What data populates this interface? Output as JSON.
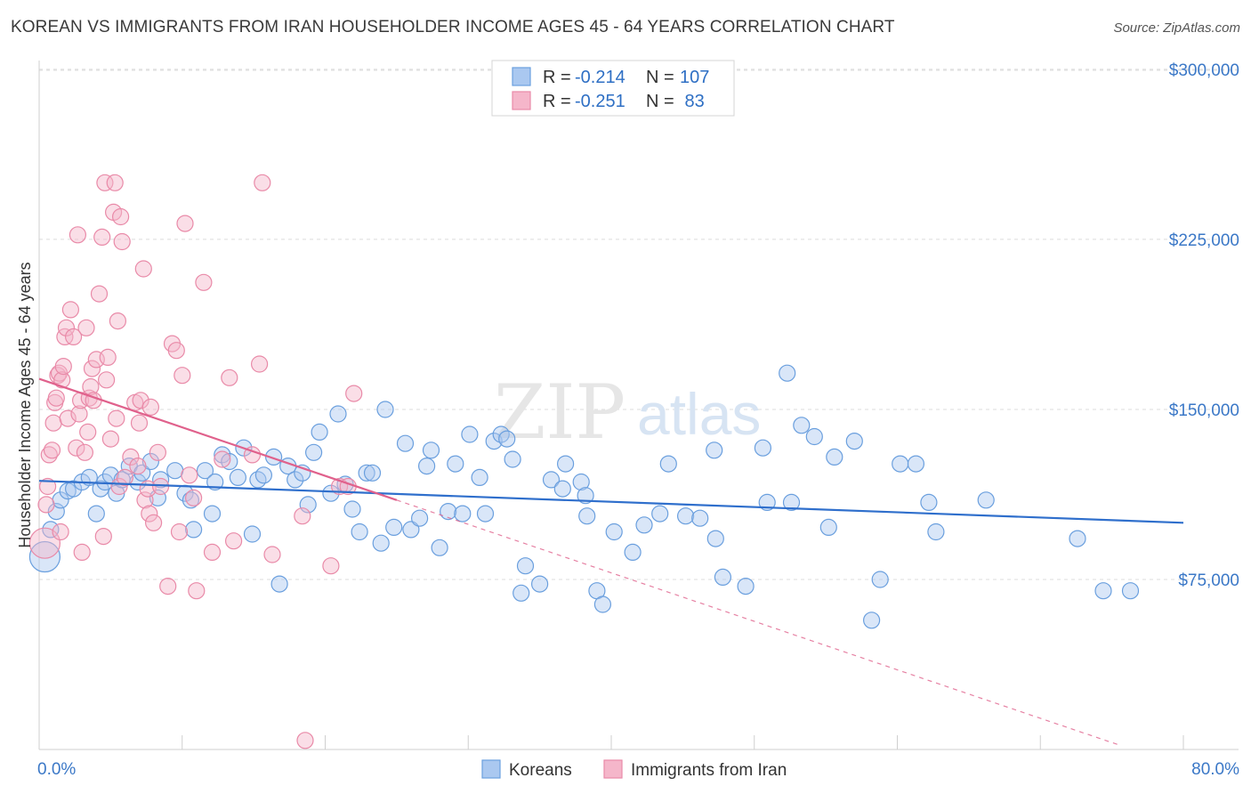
{
  "title": "KOREAN VS IMMIGRANTS FROM IRAN HOUSEHOLDER INCOME AGES 45 - 64 YEARS CORRELATION CHART",
  "source": "Source: ZipAtlas.com",
  "watermark": {
    "zip": "ZIP",
    "atlas": "atlas"
  },
  "colors": {
    "koreans_fill": "#aac8f0",
    "koreans_stroke": "#6a9fde",
    "koreans_line": "#2f6fcc",
    "iran_fill": "#f5b6ca",
    "iran_stroke": "#e98aa8",
    "iran_line": "#e0618c"
  },
  "legend": {
    "koreans": {
      "r_label": "R = ",
      "r_value": "-0.214",
      "n_label": "N = ",
      "n_value": "107"
    },
    "iran": {
      "r_label": "R = ",
      "r_value": "-0.251",
      "n_label": "N = ",
      "n_value": " 83"
    }
  },
  "chart_data": {
    "type": "scatter",
    "title": "KOREAN VS IMMIGRANTS FROM IRAN HOUSEHOLDER INCOME AGES 45 - 64 YEARS CORRELATION CHART",
    "xlabel": "",
    "ylabel": "Householder Income Ages 45 - 64 years",
    "xlim": [
      0,
      80
    ],
    "ylim": [
      0,
      315000
    ],
    "x_tick_labels": [
      "0.0%",
      "80.0%"
    ],
    "y_ticks": [
      {
        "value": 75000,
        "label": "$75,000"
      },
      {
        "value": 150000,
        "label": "$150,000"
      },
      {
        "value": 225000,
        "label": "$225,000"
      },
      {
        "value": 300000,
        "label": "$300,000"
      }
    ],
    "grid": true,
    "legend_position": "top-center",
    "series": [
      {
        "name": "Koreans",
        "r": -0.214,
        "n": 107,
        "trend": {
          "x": [
            0,
            80
          ],
          "y": [
            118500,
            100000
          ],
          "dashed_extension": false
        },
        "points": [
          [
            0.4,
            85000
          ],
          [
            0.8,
            97000
          ],
          [
            1.2,
            105000
          ],
          [
            1.5,
            110000
          ],
          [
            2.0,
            114000
          ],
          [
            2.4,
            115000
          ],
          [
            3.0,
            118000
          ],
          [
            3.5,
            120000
          ],
          [
            4.0,
            104000
          ],
          [
            4.3,
            115000
          ],
          [
            4.6,
            118000
          ],
          [
            5.0,
            121000
          ],
          [
            5.4,
            113000
          ],
          [
            5.8,
            119000
          ],
          [
            6.3,
            125000
          ],
          [
            6.9,
            118000
          ],
          [
            7.2,
            122000
          ],
          [
            7.8,
            127000
          ],
          [
            8.3,
            111000
          ],
          [
            8.5,
            119000
          ],
          [
            9.5,
            123000
          ],
          [
            10.2,
            113000
          ],
          [
            10.6,
            110000
          ],
          [
            10.8,
            97000
          ],
          [
            11.6,
            123000
          ],
          [
            12.1,
            104000
          ],
          [
            12.3,
            118000
          ],
          [
            12.8,
            130000
          ],
          [
            13.3,
            127000
          ],
          [
            13.9,
            120000
          ],
          [
            14.3,
            133000
          ],
          [
            14.9,
            95000
          ],
          [
            15.3,
            119000
          ],
          [
            15.7,
            121000
          ],
          [
            16.4,
            129000
          ],
          [
            16.8,
            73000
          ],
          [
            17.4,
            125000
          ],
          [
            17.9,
            119000
          ],
          [
            18.4,
            122000
          ],
          [
            18.8,
            108000
          ],
          [
            19.2,
            131000
          ],
          [
            19.6,
            140000
          ],
          [
            20.4,
            113000
          ],
          [
            20.9,
            148000
          ],
          [
            21.4,
            117000
          ],
          [
            21.9,
            106000
          ],
          [
            22.4,
            96000
          ],
          [
            22.9,
            122000
          ],
          [
            23.3,
            122000
          ],
          [
            23.9,
            91000
          ],
          [
            24.2,
            150000
          ],
          [
            24.8,
            98000
          ],
          [
            25.6,
            135000
          ],
          [
            26.0,
            97000
          ],
          [
            26.6,
            102000
          ],
          [
            27.1,
            125000
          ],
          [
            27.4,
            132000
          ],
          [
            28.0,
            89000
          ],
          [
            28.6,
            105000
          ],
          [
            29.1,
            126000
          ],
          [
            29.6,
            104000
          ],
          [
            30.1,
            139000
          ],
          [
            30.8,
            120000
          ],
          [
            31.2,
            104000
          ],
          [
            31.8,
            136000
          ],
          [
            32.3,
            139000
          ],
          [
            32.7,
            137000
          ],
          [
            33.1,
            128000
          ],
          [
            33.7,
            69000
          ],
          [
            34.0,
            81000
          ],
          [
            35.0,
            73000
          ],
          [
            35.8,
            119000
          ],
          [
            36.6,
            115000
          ],
          [
            36.8,
            126000
          ],
          [
            37.9,
            118000
          ],
          [
            38.2,
            112000
          ],
          [
            38.3,
            103000
          ],
          [
            39.0,
            70000
          ],
          [
            39.4,
            64000
          ],
          [
            40.2,
            96000
          ],
          [
            41.5,
            87000
          ],
          [
            42.3,
            99000
          ],
          [
            43.4,
            104000
          ],
          [
            44.0,
            126000
          ],
          [
            45.2,
            103000
          ],
          [
            46.2,
            102000
          ],
          [
            47.2,
            132000
          ],
          [
            47.3,
            93000
          ],
          [
            47.8,
            76000
          ],
          [
            49.4,
            72000
          ],
          [
            50.6,
            133000
          ],
          [
            50.9,
            109000
          ],
          [
            52.3,
            166000
          ],
          [
            52.6,
            109000
          ],
          [
            53.3,
            143000
          ],
          [
            54.2,
            138000
          ],
          [
            55.2,
            98000
          ],
          [
            55.6,
            129000
          ],
          [
            57.0,
            136000
          ],
          [
            58.2,
            57000
          ],
          [
            58.8,
            75000
          ],
          [
            60.2,
            126000
          ],
          [
            61.3,
            126000
          ],
          [
            62.2,
            109000
          ],
          [
            62.7,
            96000
          ],
          [
            66.2,
            110000
          ],
          [
            72.6,
            93000
          ],
          [
            74.4,
            70000
          ],
          [
            76.3,
            70000
          ]
        ]
      },
      {
        "name": "Immigrants from Iran",
        "r": -0.251,
        "n": 83,
        "trend": {
          "x": [
            0,
            25
          ],
          "y": [
            163500,
            110000
          ],
          "dashed_extension": {
            "x": [
              25,
              75.5
            ],
            "y": [
              110000,
              2000
            ]
          }
        },
        "points": [
          [
            0.4,
            91000
          ],
          [
            0.5,
            108000
          ],
          [
            0.6,
            116000
          ],
          [
            0.7,
            130000
          ],
          [
            0.9,
            132000
          ],
          [
            1.0,
            144000
          ],
          [
            1.1,
            153000
          ],
          [
            1.2,
            155000
          ],
          [
            1.3,
            165000
          ],
          [
            1.4,
            166000
          ],
          [
            1.5,
            96000
          ],
          [
            1.6,
            163000
          ],
          [
            1.7,
            169000
          ],
          [
            1.8,
            182000
          ],
          [
            1.9,
            186000
          ],
          [
            2.0,
            146000
          ],
          [
            2.2,
            194000
          ],
          [
            2.4,
            182000
          ],
          [
            2.6,
            133000
          ],
          [
            2.7,
            227000
          ],
          [
            2.8,
            148000
          ],
          [
            2.9,
            154000
          ],
          [
            3.0,
            87000
          ],
          [
            3.2,
            131000
          ],
          [
            3.3,
            186000
          ],
          [
            3.4,
            140000
          ],
          [
            3.5,
            155000
          ],
          [
            3.6,
            160000
          ],
          [
            3.7,
            168000
          ],
          [
            3.8,
            154000
          ],
          [
            4.0,
            172000
          ],
          [
            4.2,
            201000
          ],
          [
            4.4,
            226000
          ],
          [
            4.5,
            94000
          ],
          [
            4.6,
            250000
          ],
          [
            4.7,
            163000
          ],
          [
            4.8,
            173000
          ],
          [
            5.0,
            137000
          ],
          [
            5.2,
            237000
          ],
          [
            5.3,
            250000
          ],
          [
            5.4,
            146000
          ],
          [
            5.5,
            189000
          ],
          [
            5.6,
            116000
          ],
          [
            5.7,
            235000
          ],
          [
            5.8,
            224000
          ],
          [
            6.0,
            120000
          ],
          [
            6.4,
            129000
          ],
          [
            6.7,
            153000
          ],
          [
            6.9,
            125000
          ],
          [
            7.0,
            144000
          ],
          [
            7.1,
            154000
          ],
          [
            7.3,
            212000
          ],
          [
            7.4,
            110000
          ],
          [
            7.6,
            115000
          ],
          [
            7.7,
            104000
          ],
          [
            7.8,
            151000
          ],
          [
            8.0,
            100000
          ],
          [
            8.3,
            131000
          ],
          [
            8.5,
            116000
          ],
          [
            9.0,
            72000
          ],
          [
            9.3,
            179000
          ],
          [
            9.6,
            176000
          ],
          [
            9.8,
            96000
          ],
          [
            10.0,
            165000
          ],
          [
            10.2,
            232000
          ],
          [
            10.8,
            111000
          ],
          [
            11.0,
            70000
          ],
          [
            11.5,
            206000
          ],
          [
            12.1,
            87000
          ],
          [
            12.8,
            128000
          ],
          [
            13.3,
            164000
          ],
          [
            13.6,
            92000
          ],
          [
            14.9,
            130000
          ],
          [
            15.4,
            170000
          ],
          [
            15.6,
            250000
          ],
          [
            16.3,
            86000
          ],
          [
            18.4,
            103000
          ],
          [
            18.6,
            4000
          ],
          [
            20.4,
            81000
          ],
          [
            21.0,
            116000
          ],
          [
            21.6,
            116000
          ],
          [
            22.0,
            157000
          ],
          [
            10.5,
            121000
          ]
        ]
      }
    ]
  },
  "axes": {
    "y_label": "Householder Income Ages 45 - 64 years",
    "x_min_label": "0.0%",
    "x_max_label": "80.0%"
  },
  "bottom_legend": {
    "koreans": "Koreans",
    "iran": "Immigrants from Iran"
  }
}
